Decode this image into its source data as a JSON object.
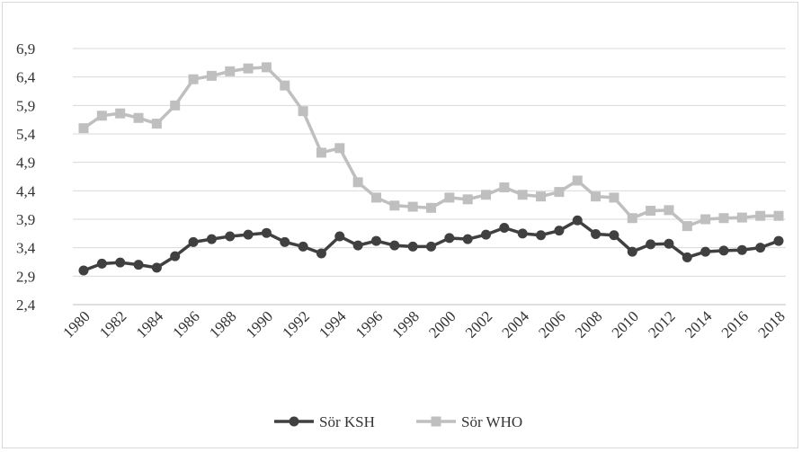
{
  "chart_data": {
    "type": "line",
    "title": "",
    "xlabel": "",
    "ylabel": "",
    "ylim": [
      2.4,
      6.9
    ],
    "yticks": [
      "6,9",
      "6,4",
      "5,9",
      "5,4",
      "4,9",
      "4,4",
      "3,9",
      "3,4",
      "2,9",
      "2,4"
    ],
    "ytick_values": [
      6.9,
      6.4,
      5.9,
      5.4,
      4.9,
      4.4,
      3.9,
      3.4,
      2.9,
      2.4
    ],
    "x": [
      1980,
      1981,
      1982,
      1983,
      1984,
      1985,
      1986,
      1987,
      1988,
      1989,
      1990,
      1991,
      1992,
      1993,
      1994,
      1995,
      1996,
      1997,
      1998,
      1999,
      2000,
      2001,
      2002,
      2003,
      2004,
      2005,
      2006,
      2007,
      2008,
      2009,
      2010,
      2011,
      2012,
      2013,
      2014,
      2015,
      2016,
      2017,
      2018
    ],
    "xtick_labels": [
      "1980",
      "1982",
      "1984",
      "1986",
      "1988",
      "1990",
      "1992",
      "1994",
      "1996",
      "1998",
      "2000",
      "2002",
      "2004",
      "2006",
      "2008",
      "2010",
      "2012",
      "2014",
      "2016",
      "2018"
    ],
    "grid": true,
    "legend_position": "bottom",
    "series": [
      {
        "name": "Sör KSH",
        "color": "#404040",
        "marker": "circle",
        "values": [
          3.0,
          3.12,
          3.14,
          3.1,
          3.05,
          3.25,
          3.5,
          3.55,
          3.6,
          3.63,
          3.66,
          3.5,
          3.42,
          3.3,
          3.6,
          3.44,
          3.52,
          3.44,
          3.42,
          3.42,
          3.57,
          3.55,
          3.63,
          3.75,
          3.65,
          3.62,
          3.7,
          3.88,
          3.64,
          3.62,
          3.33,
          3.46,
          3.47,
          3.23,
          3.33,
          3.35,
          3.36,
          3.4,
          3.52
        ]
      },
      {
        "name": "Sör WHO",
        "color": "#bfbfbf",
        "marker": "square",
        "values": [
          5.5,
          5.72,
          5.76,
          5.68,
          5.58,
          5.9,
          6.36,
          6.42,
          6.5,
          6.55,
          6.57,
          6.25,
          5.8,
          5.07,
          5.15,
          4.55,
          4.28,
          4.14,
          4.12,
          4.1,
          4.28,
          4.25,
          4.33,
          4.46,
          4.33,
          4.3,
          4.38,
          4.58,
          4.3,
          4.28,
          3.92,
          4.05,
          4.06,
          3.78,
          3.9,
          3.92,
          3.93,
          3.96,
          3.96
        ]
      }
    ]
  }
}
